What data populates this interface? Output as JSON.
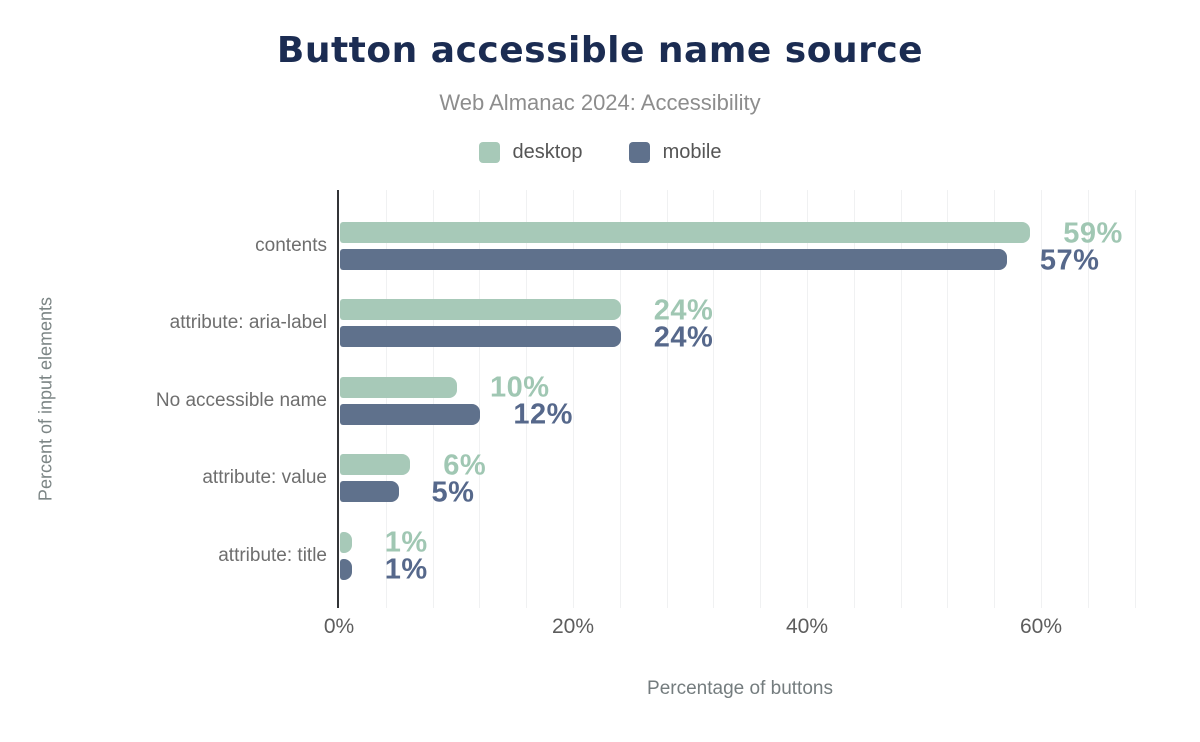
{
  "chart_data": {
    "type": "bar",
    "orientation": "horizontal",
    "title": "Button accessible name source",
    "subtitle": "Web Almanac 2024: Accessibility",
    "categories": [
      "contents",
      "attribute: aria-label",
      "No accessible name",
      "attribute: value",
      "attribute: title"
    ],
    "series": [
      {
        "name": "desktop",
        "color": "#a7c9b8",
        "label_color": "#a0c7b3",
        "values": [
          59,
          24,
          10,
          6,
          1
        ],
        "data_labels": [
          "59%",
          "24%",
          "10%",
          "6%",
          "1%"
        ]
      },
      {
        "name": "mobile",
        "color": "#5f718c",
        "label_color": "#56688b",
        "values": [
          57,
          24,
          12,
          5,
          1
        ],
        "data_labels": [
          "57%",
          "24%",
          "12%",
          "5%",
          "1%"
        ]
      }
    ],
    "xlabel": "Percentage of buttons",
    "ylabel": "Percent of input elements",
    "xlim": [
      0,
      68.5
    ],
    "xticks": [
      {
        "value": 0,
        "label": "0%"
      },
      {
        "value": 20,
        "label": "20%"
      },
      {
        "value": 40,
        "label": "40%"
      },
      {
        "value": 60,
        "label": "60%"
      }
    ],
    "grid": {
      "step": 4,
      "max": 68,
      "on": true
    },
    "legend_position": "top"
  },
  "colors": {
    "title": "#1b2c52",
    "subtitle": "#8d8d8d",
    "gridline": "#f0f1f2",
    "axis_line": "#323437",
    "background": "#ffffff"
  }
}
